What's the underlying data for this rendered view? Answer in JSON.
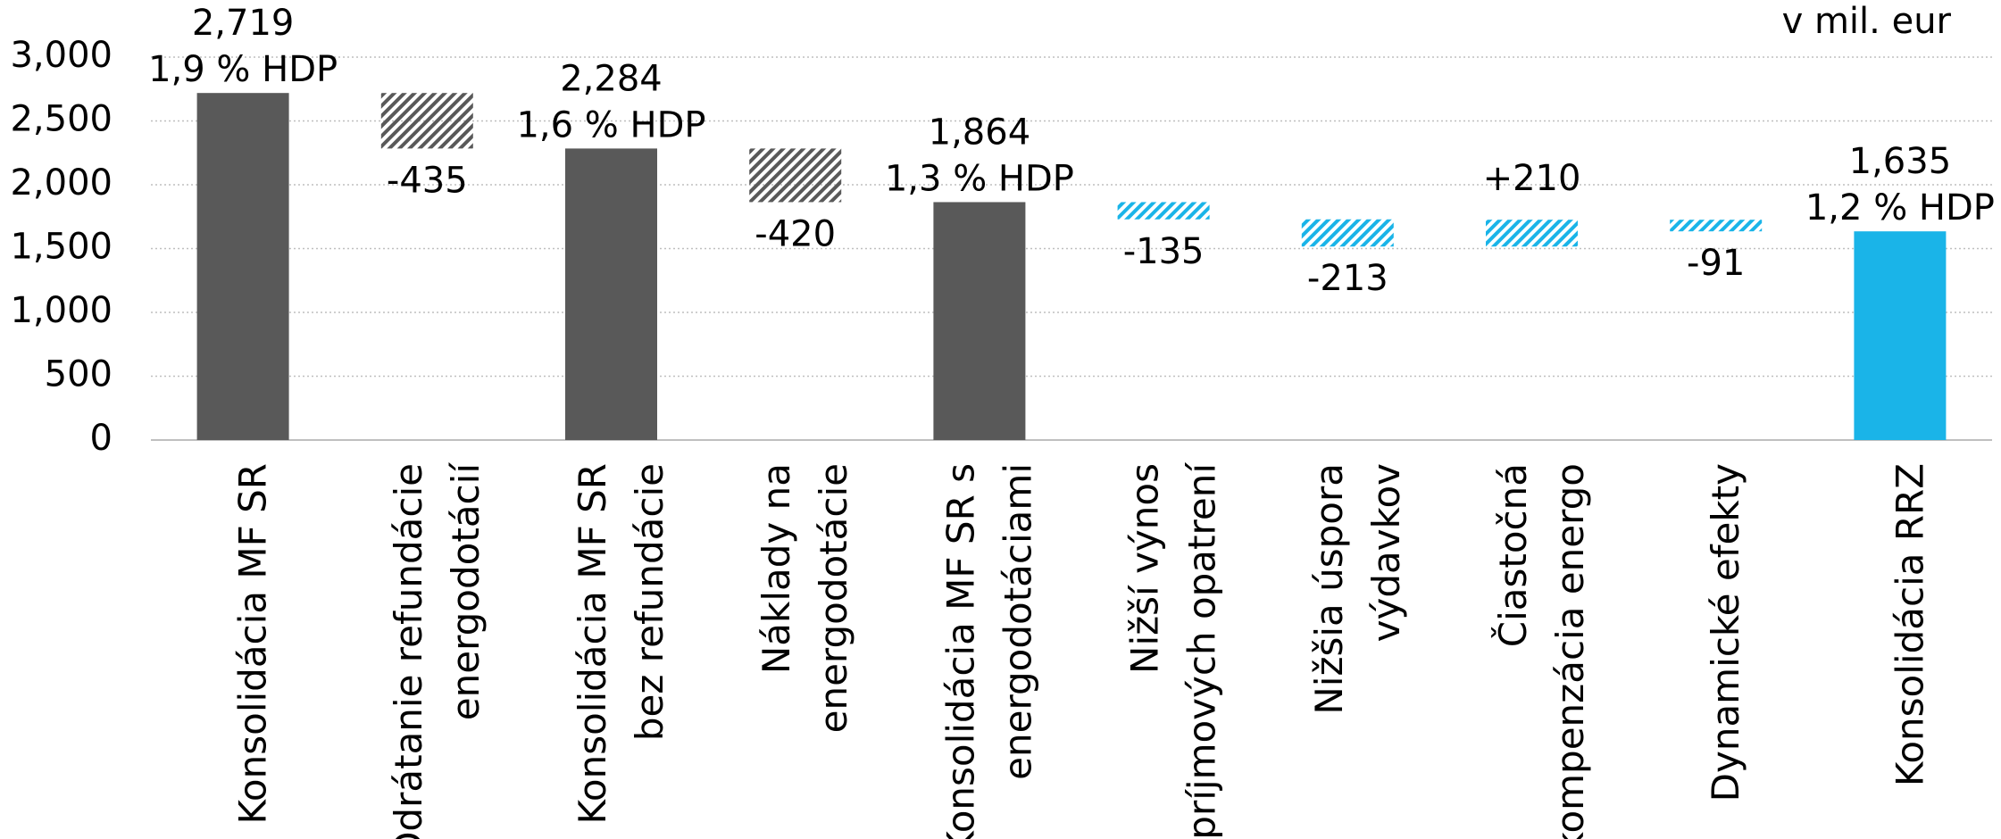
{
  "chart_data": {
    "type": "waterfall",
    "unit_label": "v mil. eur",
    "categories": [
      [
        "Konsolidácia MF SR"
      ],
      [
        "Odrátanie refundácie",
        "energodotácií"
      ],
      [
        "Konsolidácia MF SR",
        "bez refundácie"
      ],
      [
        "Náklady na",
        "energodotácie"
      ],
      [
        "Konsolidácia MF SR s",
        "energodotáciami"
      ],
      [
        "Nižší výnos",
        "príjmových opatrení"
      ],
      [
        "Nižšia úspora",
        "výdavkov"
      ],
      [
        "Čiastočná",
        "kompenzácia energo"
      ],
      [
        "Dynamické efekty"
      ],
      [
        "Konsolidácia RRZ"
      ]
    ],
    "values": [
      2719,
      -435,
      2284,
      -420,
      1864,
      -135,
      -213,
      210,
      -91,
      1635
    ],
    "value_labels": [
      "2,719",
      "-435",
      "2,284",
      "-420",
      "1,864",
      "-135",
      "-213",
      "+210",
      "-91",
      "1,635"
    ],
    "gdp_labels": [
      "1,9 % HDP",
      null,
      "1,6 % HDP",
      null,
      "1,3 % HDP",
      null,
      null,
      null,
      null,
      "1,2 % HDP"
    ],
    "totals": [
      true,
      false,
      true,
      false,
      true,
      false,
      false,
      false,
      false,
      true
    ],
    "hatched": [
      false,
      true,
      false,
      true,
      false,
      true,
      true,
      true,
      true,
      false
    ],
    "colors": [
      "#595959",
      "#595959",
      "#595959",
      "#595959",
      "#595959",
      "#1ab4e8",
      "#1ab4e8",
      "#1ab4e8",
      "#1ab4e8",
      "#1ab4e8"
    ],
    "ylim": [
      0,
      3000
    ],
    "yticks": [
      0,
      500,
      {
        "value": 1000,
        "label": "1,000"
      },
      {
        "value": 1500,
        "label": "1,500"
      },
      {
        "value": 2000,
        "label": "2,000"
      },
      {
        "value": 2500,
        "label": "2,500"
      },
      {
        "value": 3000,
        "label": "3,000"
      }
    ],
    "grid": true
  }
}
